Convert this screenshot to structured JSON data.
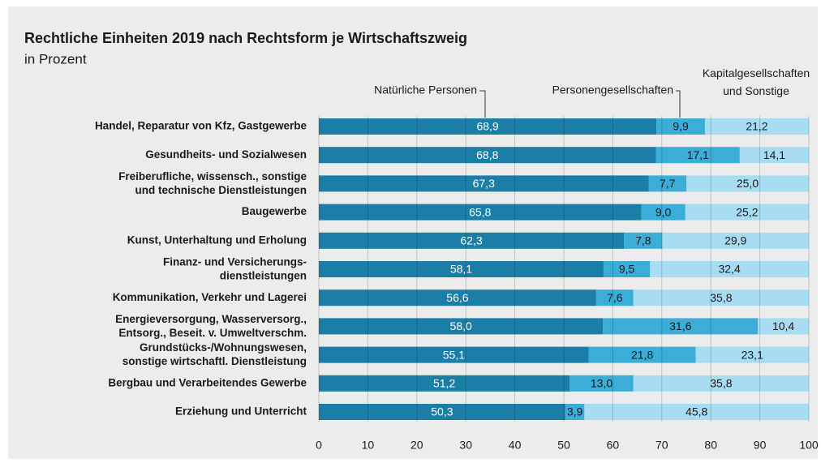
{
  "chart_data": {
    "type": "stacked-bar-horizontal",
    "title": "Rechtliche Einheiten 2019 nach Rechtsform je Wirtschaftszweig",
    "subtitle": "in Prozent",
    "categories": [
      "Handel, Reparatur von Kfz, Gastgewerbe",
      "Gesundheits- und Sozialwesen",
      "Freiberufliche, wissensch., sonstige\nund technische Dienstleistungen",
      "Baugewerbe",
      "Kunst, Unterhaltung und Erholung",
      "Finanz- und Versicherungs-\ndienstleistungen",
      "Kommunikation, Verkehr und Lagerei",
      "Energieversorgung, Wasserversorg.,\nEntsorg., Beseit. v. Umweltverschm.",
      "Grundstücks-/Wohnungswesen,\nsonstige wirtschaftl. Dienstleistung",
      "Bergbau und Verarbeitendes Gewerbe",
      "Erziehung und Unterricht"
    ],
    "series": [
      {
        "name": "Natürliche Personen",
        "color": "#1b7ea6",
        "values": [
          68.9,
          68.8,
          67.3,
          65.8,
          62.3,
          58.1,
          56.6,
          58.0,
          55.1,
          51.2,
          50.3
        ],
        "value_labels": [
          "68,9",
          "68,8",
          "67,3",
          "65,8",
          "62,3",
          "58,1",
          "56,6",
          "58,0",
          "55,1",
          "51,2",
          "50,3"
        ]
      },
      {
        "name": "Personengesellschaften",
        "color": "#3badd7",
        "values": [
          9.9,
          17.1,
          7.7,
          9.0,
          7.8,
          9.5,
          7.6,
          31.6,
          21.8,
          13.0,
          3.9
        ],
        "value_labels": [
          "9,9",
          "17,1",
          "7,7",
          "9,0",
          "7,8",
          "9,5",
          "7,6",
          "31,6",
          "21,8",
          "13,0",
          "3,9"
        ]
      },
      {
        "name": "Kapitalgesellschaften\nund Sonstige",
        "color": "#a7dcf2",
        "values": [
          21.2,
          14.1,
          25.0,
          25.2,
          29.9,
          32.4,
          35.8,
          10.4,
          23.1,
          35.8,
          45.8
        ],
        "value_labels": [
          "21,2",
          "14,1",
          "25,0",
          "25,2",
          "29,9",
          "32,4",
          "35,8",
          "10,4",
          "23,1",
          "35,8",
          "45,8"
        ]
      }
    ],
    "xlim": [
      0,
      100
    ],
    "xticks": [
      0,
      10,
      20,
      30,
      40,
      50,
      60,
      70,
      80,
      90,
      100
    ],
    "grid": true
  }
}
